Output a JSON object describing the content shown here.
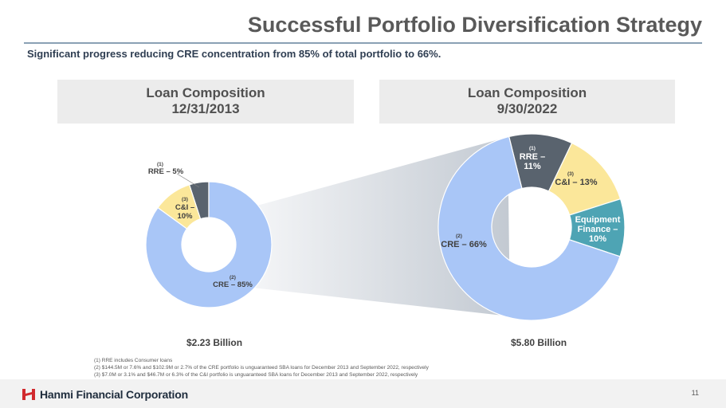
{
  "page": {
    "title": "Successful Portfolio Diversification Strategy",
    "subtitle": "Significant progress reducing CRE concentration from 85% of total portfolio to 66%.",
    "page_number": "11",
    "company": "Hanmi Financial Corporation",
    "footnotes": [
      "(1)   RRE includes Consumer loans",
      "(2)   $144.5M or 7.6% and $102.9M or 2.7% of the CRE portfolio is unguaranteed SBA loans for December 2013 and September 2022, respectively",
      "(3)   $7.0M or 3.1% and $46.7M or 6.3% of the C&I portfolio is unguaranteed SBA loans for December 2013 and September 2022, respectively"
    ]
  },
  "chart_data": [
    {
      "type": "pie",
      "title_line1": "Loan Composition",
      "title_line2": "12/31/2013",
      "total": "$2.23 Billion",
      "slices": [
        {
          "label": "RRE – 5%",
          "label_lines": [
            "RRE – 5%"
          ],
          "value": 5,
          "footnote": "(1)",
          "color": "#59636e"
        },
        {
          "label": "CRE – 85%",
          "label_lines": [
            "CRE – 85%"
          ],
          "value": 85,
          "footnote": "(2)",
          "color": "#a9c6f7"
        },
        {
          "label": "C&I – 10%",
          "label_lines": [
            "C&I –",
            "10%"
          ],
          "value": 10,
          "footnote": "(3)",
          "color": "#fbe79a"
        }
      ]
    },
    {
      "type": "pie",
      "title_line1": "Loan Composition",
      "title_line2": "9/30/2022",
      "total": "$5.80 Billion",
      "slices": [
        {
          "label": "RRE – 11%",
          "label_lines": [
            "RRE –",
            "11%"
          ],
          "value": 11,
          "footnote": "(1)",
          "color": "#59636e"
        },
        {
          "label": "C&I – 13%",
          "label_lines": [
            "C&I – 13%"
          ],
          "value": 13,
          "footnote": "(3)",
          "color": "#fbe79a"
        },
        {
          "label": "Equipment Finance – 10%",
          "label_lines": [
            "Equipment",
            "Finance –",
            "10%"
          ],
          "value": 10,
          "footnote": "",
          "color": "#4ea4b4"
        },
        {
          "label": "CRE – 66%",
          "label_lines": [
            "CRE – 66%"
          ],
          "value": 66,
          "footnote": "(2)",
          "color": "#a9c6f7"
        }
      ]
    }
  ],
  "colors": {
    "title": "#595959",
    "rule": "#8aa1b5",
    "logo_red": "#d12a2e"
  }
}
